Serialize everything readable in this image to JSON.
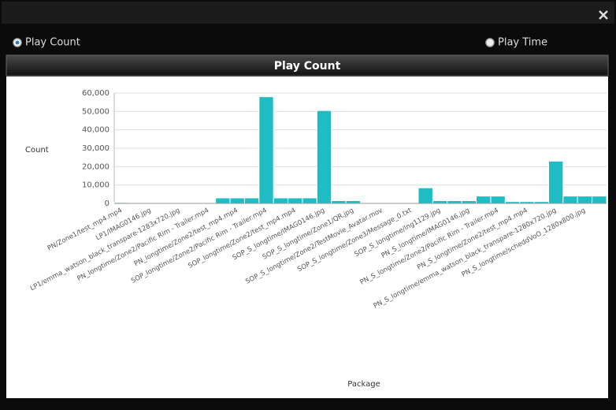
{
  "options": [
    {
      "label": "Play Count",
      "selected": true
    },
    {
      "label": "Play Time",
      "selected": false
    }
  ],
  "chart_data": {
    "type": "bar",
    "title": "Play Count",
    "y_label": "Count",
    "x_label": "Package",
    "color": "#1fbcc4",
    "grid": true,
    "ylim": [
      0,
      60000
    ],
    "yticks": [
      0,
      {
        "value": 10000,
        "label": "10,000"
      },
      {
        "value": 20000,
        "label": "20,000"
      },
      {
        "value": 30000,
        "label": "30,000"
      },
      {
        "value": 40000,
        "label": "40,000"
      },
      {
        "value": 50000,
        "label": "50,000"
      },
      {
        "value": 60000,
        "label": "60,000"
      }
    ],
    "categories": [
      "PN/Zone1/test_mp4.mp4",
      null,
      "LP1/IMAG0146.jpg",
      null,
      "LP1/emma_watson_black_transpare-1283x720.jpg",
      null,
      "PN_longtime/Zone2/Pacific Rim - Trailer.mp4",
      null,
      "PN_longtime/Zone2/test_mp4.mp4",
      null,
      "SOP_longtime/Zone2/Pacific Rim - Trailer.mp4",
      null,
      "SOP_longtime/Zone2/test_mp4.mp4",
      null,
      "SOP_S_longtime/IMAG0146.jpg",
      null,
      "SOP_S_longtime/Zone1/QR.jpg",
      null,
      "SOP_S_longtime/Zone2/TestMovie_Avatar.mov",
      null,
      "SOP_S_longtime/Zone3/Message_0.txt",
      null,
      "SOP_S_longtime/lng1129.jpg",
      null,
      "PN_S_longtime/IMAG0146.jpg",
      null,
      "PN_S_longtime/Zone2/Pacific Rim - Trailer.mp4",
      null,
      "PN_S_longtime/Zone2/test_mp4.mp4",
      null,
      "PN_S_longtime/emma_watson_black_transpare-1280x720.jpg",
      null,
      "PN_S_longtime/scheddVoO_1280x800.jpg",
      null
    ],
    "values": [
      500,
      300,
      0,
      0,
      0,
      0,
      0,
      3000,
      3000,
      3000,
      58000,
      3000,
      3000,
      3000,
      50500,
      1500,
      1500,
      0,
      300,
      300,
      300,
      8500,
      1500,
      1500,
      1500,
      4000,
      4000,
      1000,
      1000,
      1000,
      23000,
      4000,
      4000,
      4000
    ]
  }
}
